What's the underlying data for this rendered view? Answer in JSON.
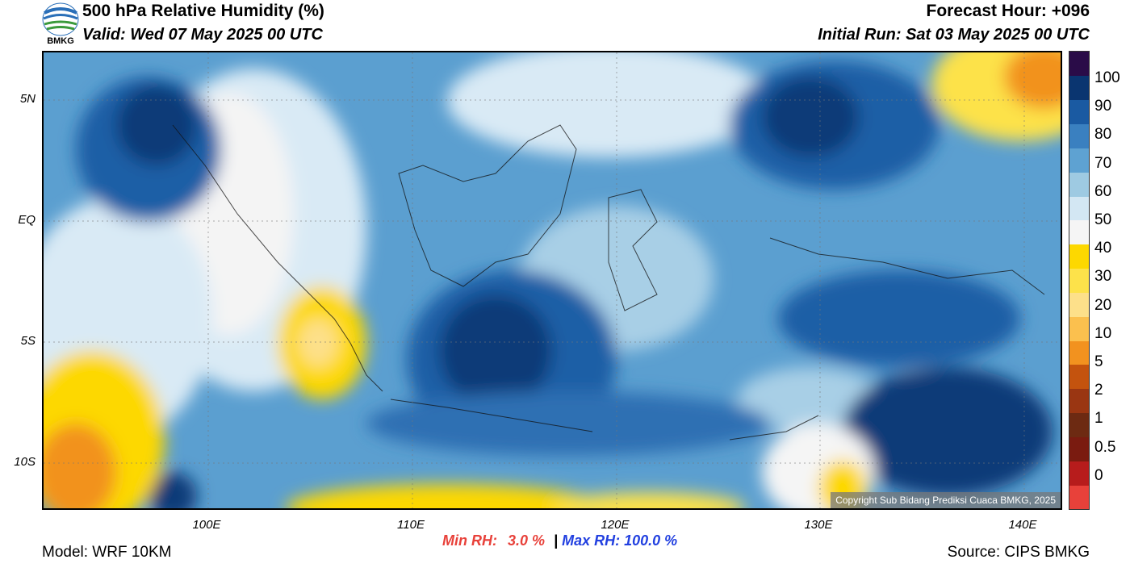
{
  "header": {
    "title": "500 hPa Relative Humidity (%)",
    "valid": "Valid: Wed 07 May 2025 00 UTC",
    "forecast_hour": "Forecast Hour: +096",
    "initial_run": "Initial Run: Sat 03 May 2025 00 UTC",
    "logo_text": "BMKG"
  },
  "map": {
    "lat_labels": [
      "5N",
      "EQ",
      "5S",
      "10S"
    ],
    "lon_labels": [
      "100E",
      "110E",
      "120E",
      "130E",
      "140E"
    ],
    "copyright": "Copyright Sub Bidang Prediksi Cuaca BMKG, 2025"
  },
  "colorbar": {
    "labels": [
      "100",
      "90",
      "80",
      "70",
      "60",
      "50",
      "40",
      "30",
      "20",
      "10",
      "5",
      "2",
      "1",
      "0.5",
      "0"
    ],
    "colors": [
      "#e8413a",
      "#b71c1c",
      "#7a1b10",
      "#6d2a12",
      "#9a3612",
      "#c4530e",
      "#f2921f",
      "#fbc04e",
      "#fde08a",
      "#fde24a",
      "#fdd800",
      "#f5f5f5",
      "#d3e7f3",
      "#9ecae2",
      "#5ea2d2",
      "#3a80c0",
      "#1a5aa2",
      "#0a3570",
      "#2a0c48"
    ]
  },
  "footer": {
    "model": "Model: WRF 10KM",
    "min_rh_label": "Min RH:",
    "min_rh_value": "3.0 %",
    "separator": "|",
    "max_rh_label": "Max RH:",
    "max_rh_value": "100.0 %",
    "source": "Source: CIPS BMKG"
  }
}
